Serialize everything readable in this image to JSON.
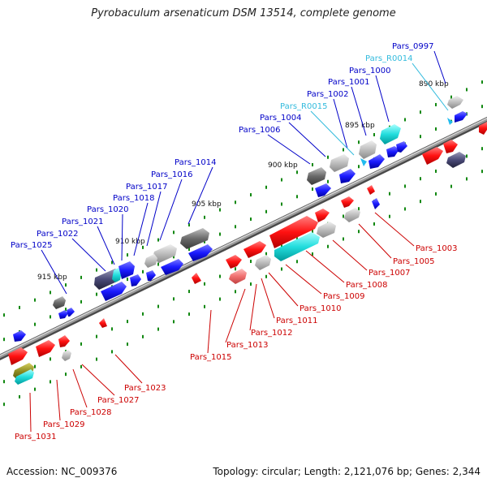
{
  "title": "Pyrobaculum arsenaticum DSM 13514, complete genome",
  "footer": {
    "accession": "Accession: NC_009376",
    "topology": "Topology: circular; Length: 2,121,076 bp; Genes: 2,344"
  },
  "colors": {
    "backbone": "#8a8a8a",
    "upper_label": "#0000c8",
    "upper_rna_label": "#33bbdd",
    "lower_label": "#cc0000",
    "forward_gene": "#1a1aff",
    "reverse_gene": "#ff1111",
    "gray_block": "#b8b8b8",
    "dark_block": "#4a4a78",
    "cyan_block": "#22dddd",
    "pink_block": "#f07070",
    "tick": "#118811"
  },
  "ticks": [
    "890 kbp",
    "895 kbp",
    "900 kbp",
    "905 kbp",
    "910 kbp",
    "915 kbp"
  ],
  "upper_labels": [
    {
      "text": "Pars_0997",
      "type": "cds"
    },
    {
      "text": "Pars_R0014",
      "type": "rna"
    },
    {
      "text": "Pars_1000",
      "type": "cds"
    },
    {
      "text": "Pars_1001",
      "type": "cds"
    },
    {
      "text": "Pars_1002",
      "type": "cds"
    },
    {
      "text": "Pars_R0015",
      "type": "rna"
    },
    {
      "text": "Pars_1004",
      "type": "cds"
    },
    {
      "text": "Pars_1006",
      "type": "cds"
    },
    {
      "text": "Pars_1014",
      "type": "cds"
    },
    {
      "text": "Pars_1016",
      "type": "cds"
    },
    {
      "text": "Pars_1017",
      "type": "cds"
    },
    {
      "text": "Pars_1018",
      "type": "cds"
    },
    {
      "text": "Pars_1020",
      "type": "cds"
    },
    {
      "text": "Pars_1021",
      "type": "cds"
    },
    {
      "text": "Pars_1022",
      "type": "cds"
    },
    {
      "text": "Pars_1025",
      "type": "cds"
    }
  ],
  "lower_labels": [
    "Pars_1003",
    "Pars_1005",
    "Pars_1007",
    "Pars_1008",
    "Pars_1009",
    "Pars_1010",
    "Pars_1011",
    "Pars_1012",
    "Pars_1013",
    "Pars_1015",
    "Pars_1023",
    "Pars_1027",
    "Pars_1028",
    "Pars_1029",
    "Pars_1031"
  ]
}
